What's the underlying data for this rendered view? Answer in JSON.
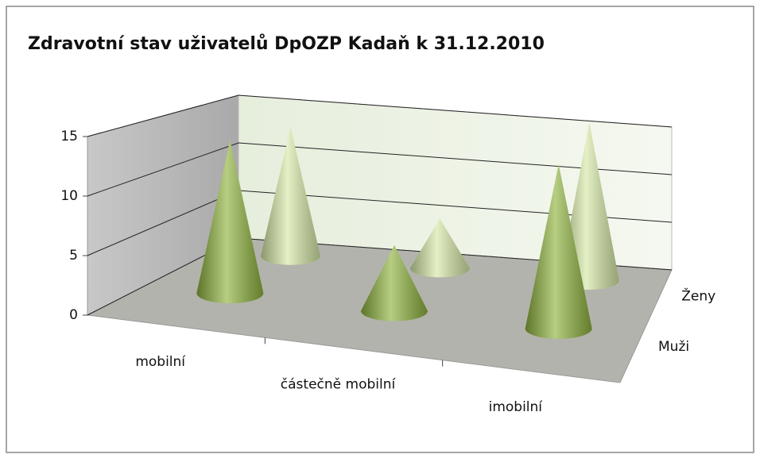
{
  "chart_data": {
    "type": "cone3d",
    "title": "Zdravotní stav uživatelů DpOZP Kadaň k 31.12.2010",
    "categories": [
      "mobilní",
      "částečně mobilní",
      "imobilní"
    ],
    "series": [
      {
        "name": "Muži",
        "color": "#8fb33f",
        "values": [
          14,
          6,
          15
        ]
      },
      {
        "name": "Ženy",
        "color": "#d6e8a6",
        "values": [
          13,
          5,
          16
        ]
      }
    ],
    "ylim": [
      0,
      15
    ],
    "yticks": [
      0,
      5,
      10,
      15
    ],
    "grid": true
  }
}
